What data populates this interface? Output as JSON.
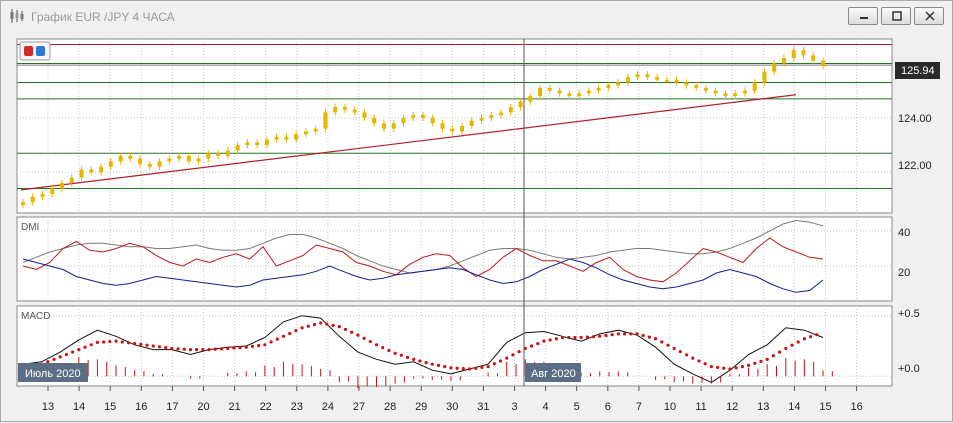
{
  "window": {
    "title": "График EUR /JPY  4 ЧАСА",
    "buttons": [
      "minimize",
      "restore",
      "close"
    ]
  },
  "colors": {
    "candle": "#e8b400",
    "resistance": "#b0202a",
    "support": "#1f7a1f",
    "trend": "#b0202a",
    "current_price_line": "#7a7a7a",
    "price_tag_bg": "#2a2a2a",
    "plus_di": "#7a7a7a",
    "minus_di": "#c01818",
    "adx": "#102090",
    "macd_line": "#111111",
    "macd_signal": "#cc1111",
    "macd_hist": "#cc1111"
  },
  "chart_data": [
    {
      "type": "candlestick",
      "panel": "price",
      "x_tick_labels": [
        "13",
        "14",
        "15",
        "16",
        "17",
        "20",
        "21",
        "22",
        "23",
        "24",
        "27",
        "28",
        "29",
        "30",
        "31",
        "3",
        "4",
        "5",
        "6",
        "7",
        "10",
        "11",
        "12",
        "13",
        "14",
        "15",
        "16"
      ],
      "month_labels": [
        "Июль 2020",
        "Авг 2020"
      ],
      "y_tick_labels": [
        "124.00",
        "122.00"
      ],
      "ylim": [
        120.5,
        126.9
      ],
      "current_price": "125.94",
      "horizontal_levels": [
        {
          "value": 126.0,
          "color": "support"
        },
        {
          "value": 125.3,
          "color": "support"
        },
        {
          "value": 124.7,
          "color": "support"
        },
        {
          "value": 122.7,
          "color": "support"
        },
        {
          "value": 121.4,
          "color": "support"
        },
        {
          "value": 126.7,
          "color": "resistance"
        }
      ],
      "trend_line": {
        "from": [
          0,
          121.35
        ],
        "to": [
          24.05,
          124.85
        ]
      },
      "close": [
        120.9,
        121.1,
        121.2,
        121.4,
        121.6,
        121.8,
        122.1,
        122.0,
        122.2,
        122.4,
        122.6,
        122.5,
        122.3,
        122.2,
        122.4,
        122.5,
        122.6,
        122.4,
        122.5,
        122.7,
        122.6,
        122.8,
        123.0,
        123.1,
        123.0,
        123.2,
        123.3,
        123.2,
        123.4,
        123.5,
        123.6,
        124.2,
        124.4,
        124.3,
        124.2,
        124.0,
        123.8,
        123.6,
        123.8,
        124.0,
        124.1,
        124.0,
        123.8,
        123.6,
        123.5,
        123.7,
        123.9,
        124.0,
        124.1,
        124.2,
        124.4,
        124.6,
        124.8,
        125.1,
        125.0,
        124.9,
        124.8,
        124.9,
        125.0,
        125.1,
        125.2,
        125.3,
        125.5,
        125.6,
        125.5,
        125.4,
        125.4,
        125.3,
        125.2,
        125.1,
        125.0,
        124.9,
        124.8,
        124.9,
        125.0,
        125.3,
        125.7,
        126.0,
        126.2,
        126.5,
        126.3,
        126.1,
        125.9
      ]
    },
    {
      "type": "line",
      "panel": "DMI",
      "label": "DMI",
      "y_tick_labels": [
        "40",
        "20"
      ],
      "ylim": [
        0,
        48
      ],
      "series": [
        {
          "color": "plus_di",
          "values": [
            22,
            25,
            28,
            30,
            32,
            33,
            33,
            32,
            31,
            31,
            30,
            30,
            31,
            32,
            30,
            29,
            29,
            30,
            33,
            36,
            38,
            38,
            36,
            33,
            30,
            26,
            23,
            20,
            18,
            16,
            17,
            18,
            20,
            23,
            26,
            29,
            30,
            30,
            29,
            27,
            25,
            24,
            25,
            26,
            28,
            29,
            30,
            30,
            29,
            28,
            27,
            27,
            28,
            30,
            33,
            36,
            40,
            44,
            46,
            45,
            43
          ]
        },
        {
          "color": "minus_di",
          "values": [
            20,
            18,
            22,
            30,
            34,
            29,
            28,
            30,
            33,
            31,
            26,
            22,
            20,
            24,
            22,
            25,
            27,
            24,
            31,
            20,
            23,
            26,
            32,
            30,
            28,
            22,
            20,
            17,
            15,
            21,
            25,
            27,
            26,
            19,
            14,
            18,
            25,
            30,
            26,
            23,
            23,
            20,
            17,
            22,
            25,
            18,
            14,
            12,
            11,
            16,
            23,
            30,
            28,
            25,
            22,
            30,
            36,
            31,
            28,
            25,
            24
          ]
        },
        {
          "color": "adx",
          "values": [
            24,
            22,
            20,
            18,
            14,
            12,
            10,
            9,
            10,
            12,
            14,
            13,
            12,
            11,
            10,
            9,
            8,
            9,
            12,
            13,
            14,
            15,
            17,
            20,
            17,
            14,
            12,
            13,
            15,
            16,
            17,
            18,
            19,
            18,
            15,
            12,
            10,
            11,
            14,
            18,
            21,
            24,
            22,
            19,
            15,
            12,
            10,
            8,
            7,
            8,
            10,
            12,
            16,
            18,
            16,
            14,
            10,
            7,
            5,
            6,
            12
          ]
        }
      ]
    },
    {
      "type": "line",
      "panel": "MACD",
      "label": "MACD",
      "y_tick_labels": [
        "+0.5",
        "+0.0"
      ],
      "ylim": [
        -0.08,
        0.58
      ],
      "series": [
        {
          "color": "macd_line",
          "values": [
            0.1,
            0.12,
            0.2,
            0.3,
            0.38,
            0.33,
            0.26,
            0.22,
            0.22,
            0.18,
            0.22,
            0.24,
            0.25,
            0.32,
            0.45,
            0.5,
            0.48,
            0.33,
            0.2,
            0.14,
            0.1,
            0.12,
            0.05,
            0.02,
            0.06,
            0.1,
            0.28,
            0.36,
            0.37,
            0.33,
            0.29,
            0.35,
            0.38,
            0.34,
            0.24,
            0.1,
            0.02,
            -0.05,
            0.05,
            0.18,
            0.26,
            0.4,
            0.38,
            0.32
          ]
        },
        {
          "color": "macd_signal",
          "values": [
            0.06,
            0.1,
            0.16,
            0.22,
            0.28,
            0.29,
            0.27,
            0.25,
            0.23,
            0.22,
            0.22,
            0.23,
            0.24,
            0.26,
            0.33,
            0.4,
            0.44,
            0.41,
            0.34,
            0.26,
            0.19,
            0.14,
            0.1,
            0.07,
            0.06,
            0.08,
            0.15,
            0.23,
            0.29,
            0.32,
            0.32,
            0.33,
            0.35,
            0.35,
            0.31,
            0.23,
            0.15,
            0.08,
            0.06,
            0.09,
            0.14,
            0.23,
            0.31,
            0.36
          ]
        },
        {
          "type": "histogram",
          "color": "macd_hist",
          "values": [
            0.1,
            0.07,
            0.1,
            0.16,
            0.14,
            0.09,
            0.05,
            0.02,
            0.0,
            -0.02,
            0.0,
            0.03,
            0.04,
            0.09,
            0.12,
            0.1,
            0.06,
            -0.05,
            -0.1,
            -0.09,
            -0.06,
            -0.02,
            -0.03,
            -0.04,
            0.0,
            0.03,
            0.12,
            0.14,
            0.12,
            0.06,
            0.03,
            0.04,
            0.04,
            0.0,
            -0.03,
            -0.05,
            -0.06,
            -0.06,
            0.02,
            0.07,
            0.1,
            0.15,
            0.14,
            0.05
          ]
        }
      ]
    }
  ]
}
